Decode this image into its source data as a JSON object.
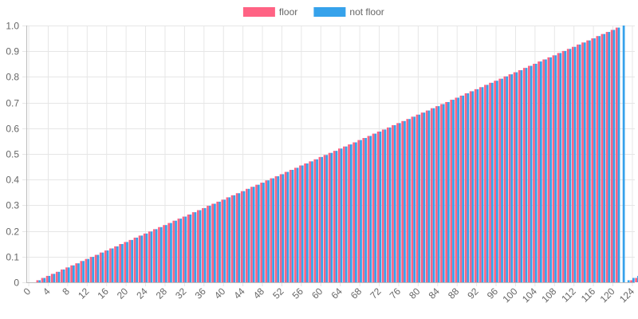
{
  "chart_data": {
    "type": "bar",
    "title": "",
    "xlabel": "",
    "ylabel": "",
    "ylim": [
      0,
      1
    ],
    "grid": true,
    "legend_position": "top-center",
    "x_range": [
      0,
      124
    ],
    "y_ticks": [
      "0",
      "0.1",
      "0.2",
      "0.3",
      "0.4",
      "0.5",
      "0.6",
      "0.7",
      "0.8",
      "0.9",
      "1.0"
    ],
    "x_ticks": [
      "0",
      "4",
      "8",
      "12",
      "16",
      "20",
      "24",
      "28",
      "32",
      "36",
      "40",
      "44",
      "48",
      "52",
      "56",
      "60",
      "64",
      "68",
      "72",
      "76",
      "80",
      "84",
      "88",
      "92",
      "96",
      "100",
      "104",
      "108",
      "112",
      "116",
      "120",
      "124"
    ],
    "series": [
      {
        "name": "floor",
        "color": "#ff6384",
        "values": [
          0,
          0,
          0.008,
          0.017,
          0.025,
          0.033,
          0.041,
          0.05,
          0.058,
          0.066,
          0.074,
          0.083,
          0.091,
          0.099,
          0.107,
          0.116,
          0.124,
          0.132,
          0.14,
          0.149,
          0.157,
          0.165,
          0.174,
          0.182,
          0.19,
          0.198,
          0.207,
          0.215,
          0.223,
          0.231,
          0.24,
          0.248,
          0.256,
          0.264,
          0.273,
          0.281,
          0.289,
          0.298,
          0.306,
          0.314,
          0.322,
          0.331,
          0.339,
          0.347,
          0.355,
          0.364,
          0.372,
          0.38,
          0.388,
          0.397,
          0.405,
          0.413,
          0.421,
          0.43,
          0.438,
          0.446,
          0.455,
          0.463,
          0.471,
          0.479,
          0.488,
          0.496,
          0.504,
          0.512,
          0.521,
          0.529,
          0.537,
          0.545,
          0.554,
          0.562,
          0.57,
          0.579,
          0.587,
          0.595,
          0.603,
          0.612,
          0.62,
          0.628,
          0.636,
          0.645,
          0.653,
          0.661,
          0.669,
          0.678,
          0.686,
          0.694,
          0.702,
          0.711,
          0.719,
          0.727,
          0.736,
          0.744,
          0.752,
          0.76,
          0.769,
          0.777,
          0.785,
          0.793,
          0.802,
          0.81,
          0.818,
          0.826,
          0.835,
          0.843,
          0.851,
          0.86,
          0.868,
          0.876,
          0.884,
          0.893,
          0.901,
          0.909,
          0.917,
          0.926,
          0.934,
          0.942,
          0.95,
          0.959,
          0.967,
          0.975,
          0.983,
          0.992,
          0,
          0,
          0.008,
          0.017
        ]
      },
      {
        "name": "not floor",
        "color": "#36a2eb",
        "values": [
          0,
          0,
          0.008,
          0.017,
          0.025,
          0.033,
          0.041,
          0.05,
          0.058,
          0.066,
          0.074,
          0.083,
          0.091,
          0.099,
          0.107,
          0.116,
          0.124,
          0.132,
          0.14,
          0.149,
          0.157,
          0.165,
          0.174,
          0.182,
          0.19,
          0.198,
          0.207,
          0.215,
          0.223,
          0.231,
          0.24,
          0.248,
          0.256,
          0.264,
          0.273,
          0.281,
          0.289,
          0.298,
          0.306,
          0.314,
          0.322,
          0.331,
          0.339,
          0.347,
          0.355,
          0.364,
          0.372,
          0.38,
          0.388,
          0.397,
          0.405,
          0.413,
          0.421,
          0.43,
          0.438,
          0.446,
          0.455,
          0.463,
          0.471,
          0.479,
          0.488,
          0.496,
          0.504,
          0.512,
          0.521,
          0.529,
          0.537,
          0.545,
          0.554,
          0.562,
          0.57,
          0.579,
          0.587,
          0.595,
          0.603,
          0.612,
          0.62,
          0.628,
          0.636,
          0.645,
          0.653,
          0.661,
          0.669,
          0.678,
          0.686,
          0.694,
          0.702,
          0.711,
          0.719,
          0.727,
          0.736,
          0.744,
          0.752,
          0.76,
          0.769,
          0.777,
          0.785,
          0.793,
          0.802,
          0.81,
          0.818,
          0.826,
          0.835,
          0.843,
          0.851,
          0.86,
          0.868,
          0.876,
          0.884,
          0.893,
          0.901,
          0.909,
          0.917,
          0.926,
          0.934,
          0.942,
          0.95,
          0.959,
          0.967,
          0.975,
          0.983,
          0.992,
          1.0,
          0.008,
          0.017,
          0.025
        ]
      }
    ]
  }
}
